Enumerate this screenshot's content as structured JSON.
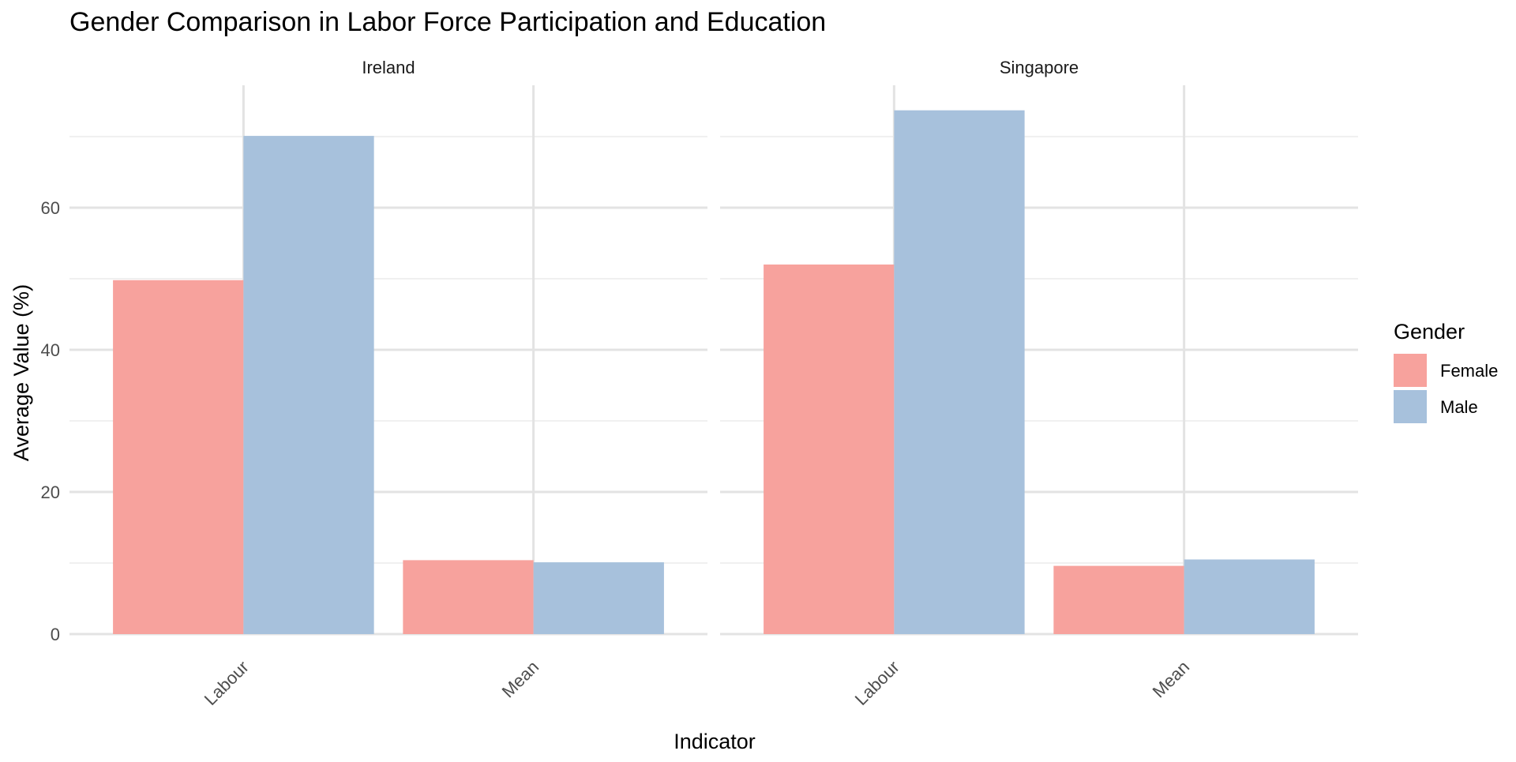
{
  "chart_data": {
    "type": "bar",
    "title": "Gender Comparison in Labor Force Participation and Education",
    "xlabel": "Indicator",
    "ylabel": "Average Value (%)",
    "ylim": [
      0,
      75
    ],
    "yticks": [
      0,
      20,
      40,
      60
    ],
    "grid": true,
    "categories": [
      "Labour",
      "Mean"
    ],
    "legend": {
      "title": "Gender",
      "position": "right",
      "items": [
        {
          "name": "Female",
          "color": "#F7A29D"
        },
        {
          "name": "Male",
          "color": "#A7C1DC"
        }
      ]
    },
    "facets": [
      {
        "label": "Ireland",
        "series": [
          {
            "name": "Female",
            "values": [
              49.8,
              10.4
            ]
          },
          {
            "name": "Male",
            "values": [
              70.1,
              10.1
            ]
          }
        ]
      },
      {
        "label": "Singapore",
        "series": [
          {
            "name": "Female",
            "values": [
              52.0,
              9.6
            ]
          },
          {
            "name": "Male",
            "values": [
              73.7,
              10.5
            ]
          }
        ]
      }
    ]
  }
}
